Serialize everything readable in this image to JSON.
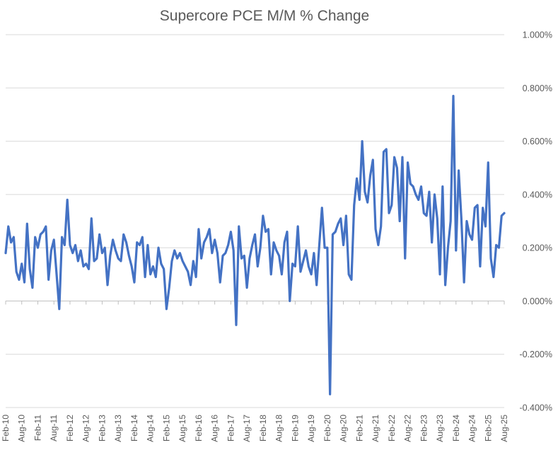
{
  "chart_data": {
    "type": "line",
    "title": "Supercore PCE M/M % Change",
    "xlabel": "",
    "ylabel": "",
    "ylim": [
      -0.4,
      1.0
    ],
    "y_ticks": [
      -0.4,
      -0.2,
      0.0,
      0.2,
      0.4,
      0.6,
      0.8,
      1.0
    ],
    "y_tick_labels": [
      "-0.400%",
      "-0.200%",
      "0.000%",
      "0.200%",
      "0.400%",
      "0.600%",
      "0.800%",
      "1.000%"
    ],
    "y_axis_position": "right",
    "grid": true,
    "legend": "none",
    "x_tick_labels": [
      "Feb-10",
      "Aug-10",
      "Feb-11",
      "Aug-11",
      "Feb-12",
      "Aug-12",
      "Feb-13",
      "Aug-13",
      "Feb-14",
      "Aug-14",
      "Feb-15",
      "Aug-15",
      "Feb-16",
      "Aug-16",
      "Feb-17",
      "Aug-17",
      "Feb-18",
      "Aug-18",
      "Feb-19",
      "Aug-19",
      "Feb-20",
      "Aug-20",
      "Feb-21",
      "Aug-21",
      "Feb-22",
      "Aug-22",
      "Feb-23",
      "Aug-23",
      "Feb-24",
      "Aug-24",
      "Feb-25",
      "Aug-25"
    ],
    "x_start": "Feb-10",
    "x_end": "Aug-25",
    "series": [
      {
        "color": "#4472c4",
        "values": [
          0.18,
          0.28,
          0.22,
          0.24,
          0.11,
          0.08,
          0.14,
          0.07,
          0.29,
          0.12,
          0.05,
          0.24,
          0.2,
          0.25,
          0.26,
          0.28,
          0.08,
          0.19,
          0.23,
          0.1,
          -0.03,
          0.24,
          0.21,
          0.38,
          0.21,
          0.18,
          0.21,
          0.15,
          0.19,
          0.13,
          0.14,
          0.12,
          0.31,
          0.15,
          0.16,
          0.25,
          0.18,
          0.2,
          0.06,
          0.17,
          0.23,
          0.19,
          0.16,
          0.15,
          0.25,
          0.22,
          0.17,
          0.13,
          0.07,
          0.22,
          0.21,
          0.24,
          0.09,
          0.21,
          0.1,
          0.13,
          0.09,
          0.2,
          0.14,
          0.12,
          -0.03,
          0.05,
          0.15,
          0.19,
          0.16,
          0.18,
          0.15,
          0.13,
          0.11,
          0.06,
          0.15,
          0.09,
          0.27,
          0.16,
          0.22,
          0.24,
          0.27,
          0.18,
          0.23,
          0.18,
          0.07,
          0.17,
          0.18,
          0.21,
          0.26,
          0.19,
          -0.09,
          0.28,
          0.16,
          0.17,
          0.05,
          0.16,
          0.21,
          0.25,
          0.13,
          0.2,
          0.32,
          0.26,
          0.27,
          0.1,
          0.22,
          0.19,
          0.17,
          0.1,
          0.22,
          0.26,
          0.0,
          0.14,
          0.13,
          0.28,
          0.11,
          0.15,
          0.19,
          0.13,
          0.1,
          0.18,
          0.06,
          0.21,
          0.35,
          0.2,
          0.2,
          -0.35,
          0.25,
          0.26,
          0.29,
          0.31,
          0.21,
          0.32,
          0.1,
          0.08,
          0.36,
          0.46,
          0.38,
          0.6,
          0.41,
          0.37,
          0.47,
          0.53,
          0.27,
          0.21,
          0.28,
          0.56,
          0.57,
          0.33,
          0.36,
          0.54,
          0.5,
          0.3,
          0.54,
          0.16,
          0.52,
          0.44,
          0.43,
          0.4,
          0.38,
          0.43,
          0.33,
          0.32,
          0.41,
          0.22,
          0.4,
          0.31,
          0.1,
          0.43,
          0.06,
          0.2,
          0.3,
          0.77,
          0.19,
          0.49,
          0.31,
          0.07,
          0.3,
          0.25,
          0.23,
          0.35,
          0.36,
          0.13,
          0.35,
          0.28,
          0.52,
          0.16,
          0.09,
          0.21,
          0.2,
          0.32,
          0.33
        ]
      }
    ]
  }
}
